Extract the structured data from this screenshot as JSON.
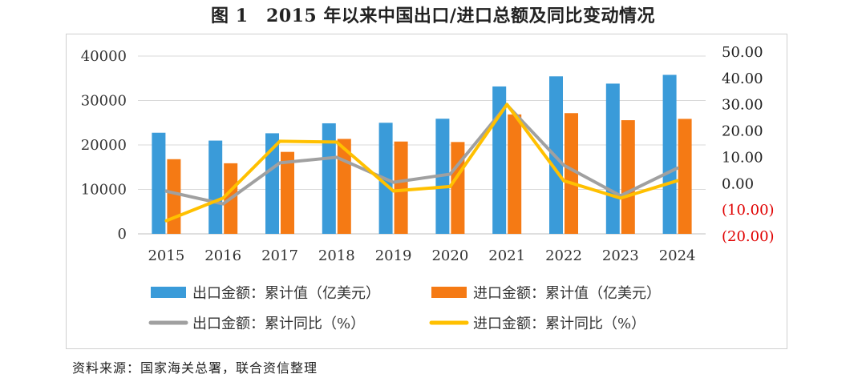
{
  "title": "图 1　2015 年以来中国出口/进口总额及同比变动情况",
  "source": "资料来源：国家海关总署，联合资信整理",
  "chart_data": {
    "type": "bar",
    "categories": [
      "2015",
      "2016",
      "2017",
      "2018",
      "2019",
      "2020",
      "2021",
      "2022",
      "2023",
      "2024"
    ],
    "left_axis": {
      "ylim": [
        0,
        40000
      ],
      "ticks": [
        "0",
        "10000",
        "20000",
        "30000",
        "40000"
      ]
    },
    "right_axis": {
      "ylim": [
        -20,
        50
      ],
      "ticks": [
        {
          "value": -20,
          "label": "(20.00)",
          "color": "#e00000"
        },
        {
          "value": -10,
          "label": "(10.00)",
          "color": "#e00000"
        },
        {
          "value": 0,
          "label": "0.00",
          "color": "#222222"
        },
        {
          "value": 10,
          "label": "10.00",
          "color": "#222222"
        },
        {
          "value": 20,
          "label": "20.00",
          "color": "#222222"
        },
        {
          "value": 30,
          "label": "30.00",
          "color": "#222222"
        },
        {
          "value": 40,
          "label": "40.00",
          "color": "#222222"
        },
        {
          "value": 50,
          "label": "50.00",
          "color": "#222222"
        }
      ]
    },
    "grid": true,
    "legend_position": "bottom",
    "series": [
      {
        "name": "出口金额：累计值（亿美元）",
        "kind": "bar",
        "axis": "left",
        "color": "#3a9bd9",
        "values": [
          22750,
          20980,
          22630,
          24870,
          24990,
          25900,
          33160,
          35440,
          33800,
          35770
        ]
      },
      {
        "name": "进口金额：累计值（亿美元）",
        "kind": "bar",
        "axis": "left",
        "color": "#f57a14",
        "values": [
          16800,
          15880,
          18440,
          21360,
          20770,
          20660,
          26870,
          27160,
          25570,
          25870
        ]
      },
      {
        "name": "出口金额：累计同比（%）",
        "kind": "line",
        "axis": "right",
        "color": "#a0a0a0",
        "values": [
          -2.9,
          -7.7,
          7.9,
          10.0,
          0.5,
          3.6,
          29.9,
          7.0,
          -4.6,
          5.9
        ]
      },
      {
        "name": "进口金额：累计同比（%）",
        "kind": "line",
        "axis": "right",
        "color": "#ffc000",
        "values": [
          -14.1,
          -5.5,
          16.1,
          15.8,
          -2.8,
          -1.1,
          30.1,
          1.1,
          -5.5,
          1.1
        ]
      }
    ]
  }
}
